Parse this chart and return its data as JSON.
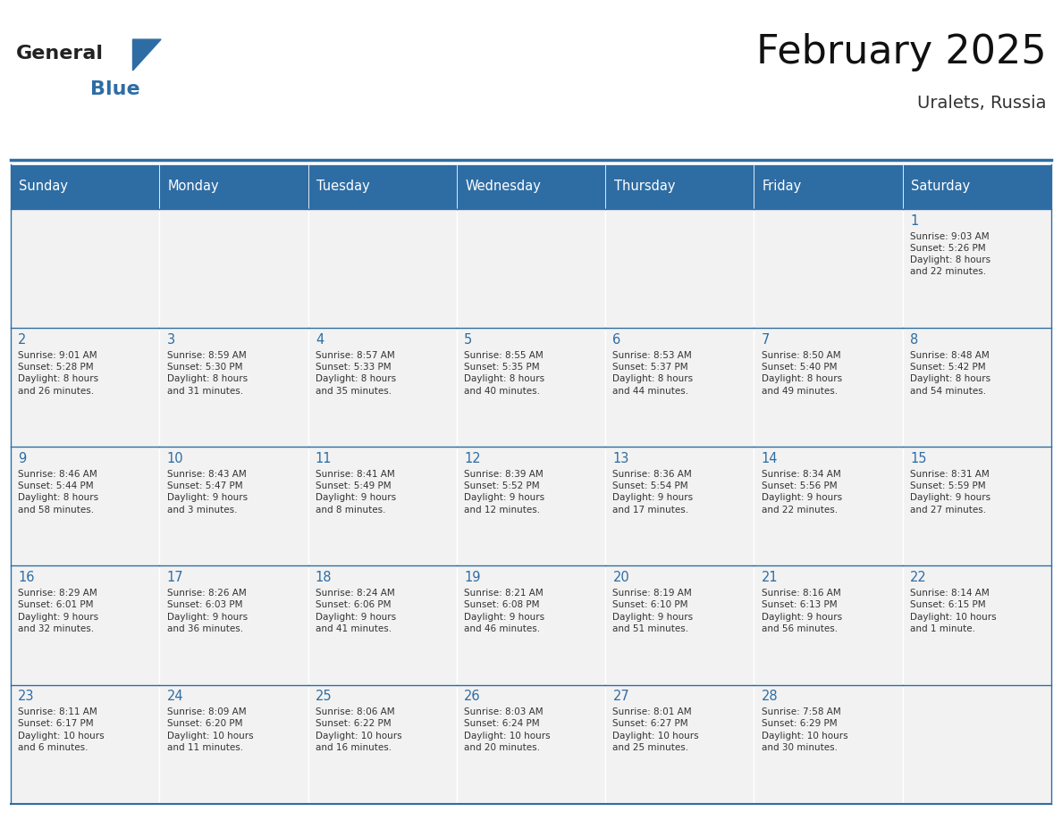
{
  "title": "February 2025",
  "subtitle": "Uralets, Russia",
  "days_of_week": [
    "Sunday",
    "Monday",
    "Tuesday",
    "Wednesday",
    "Thursday",
    "Friday",
    "Saturday"
  ],
  "header_bg": "#2E6DA4",
  "header_text": "#FFFFFF",
  "cell_bg_light": "#F2F2F2",
  "cell_bg_white": "#FFFFFF",
  "border_color": "#2E6DA4",
  "day_number_color": "#2E6DA4",
  "text_color": "#333333",
  "logo_general_color": "#222222",
  "logo_blue_color": "#2E6DA4",
  "weeks": [
    [
      {
        "day": null,
        "info": null
      },
      {
        "day": null,
        "info": null
      },
      {
        "day": null,
        "info": null
      },
      {
        "day": null,
        "info": null
      },
      {
        "day": null,
        "info": null
      },
      {
        "day": null,
        "info": null
      },
      {
        "day": 1,
        "info": "Sunrise: 9:03 AM\nSunset: 5:26 PM\nDaylight: 8 hours\nand 22 minutes."
      }
    ],
    [
      {
        "day": 2,
        "info": "Sunrise: 9:01 AM\nSunset: 5:28 PM\nDaylight: 8 hours\nand 26 minutes."
      },
      {
        "day": 3,
        "info": "Sunrise: 8:59 AM\nSunset: 5:30 PM\nDaylight: 8 hours\nand 31 minutes."
      },
      {
        "day": 4,
        "info": "Sunrise: 8:57 AM\nSunset: 5:33 PM\nDaylight: 8 hours\nand 35 minutes."
      },
      {
        "day": 5,
        "info": "Sunrise: 8:55 AM\nSunset: 5:35 PM\nDaylight: 8 hours\nand 40 minutes."
      },
      {
        "day": 6,
        "info": "Sunrise: 8:53 AM\nSunset: 5:37 PM\nDaylight: 8 hours\nand 44 minutes."
      },
      {
        "day": 7,
        "info": "Sunrise: 8:50 AM\nSunset: 5:40 PM\nDaylight: 8 hours\nand 49 minutes."
      },
      {
        "day": 8,
        "info": "Sunrise: 8:48 AM\nSunset: 5:42 PM\nDaylight: 8 hours\nand 54 minutes."
      }
    ],
    [
      {
        "day": 9,
        "info": "Sunrise: 8:46 AM\nSunset: 5:44 PM\nDaylight: 8 hours\nand 58 minutes."
      },
      {
        "day": 10,
        "info": "Sunrise: 8:43 AM\nSunset: 5:47 PM\nDaylight: 9 hours\nand 3 minutes."
      },
      {
        "day": 11,
        "info": "Sunrise: 8:41 AM\nSunset: 5:49 PM\nDaylight: 9 hours\nand 8 minutes."
      },
      {
        "day": 12,
        "info": "Sunrise: 8:39 AM\nSunset: 5:52 PM\nDaylight: 9 hours\nand 12 minutes."
      },
      {
        "day": 13,
        "info": "Sunrise: 8:36 AM\nSunset: 5:54 PM\nDaylight: 9 hours\nand 17 minutes."
      },
      {
        "day": 14,
        "info": "Sunrise: 8:34 AM\nSunset: 5:56 PM\nDaylight: 9 hours\nand 22 minutes."
      },
      {
        "day": 15,
        "info": "Sunrise: 8:31 AM\nSunset: 5:59 PM\nDaylight: 9 hours\nand 27 minutes."
      }
    ],
    [
      {
        "day": 16,
        "info": "Sunrise: 8:29 AM\nSunset: 6:01 PM\nDaylight: 9 hours\nand 32 minutes."
      },
      {
        "day": 17,
        "info": "Sunrise: 8:26 AM\nSunset: 6:03 PM\nDaylight: 9 hours\nand 36 minutes."
      },
      {
        "day": 18,
        "info": "Sunrise: 8:24 AM\nSunset: 6:06 PM\nDaylight: 9 hours\nand 41 minutes."
      },
      {
        "day": 19,
        "info": "Sunrise: 8:21 AM\nSunset: 6:08 PM\nDaylight: 9 hours\nand 46 minutes."
      },
      {
        "day": 20,
        "info": "Sunrise: 8:19 AM\nSunset: 6:10 PM\nDaylight: 9 hours\nand 51 minutes."
      },
      {
        "day": 21,
        "info": "Sunrise: 8:16 AM\nSunset: 6:13 PM\nDaylight: 9 hours\nand 56 minutes."
      },
      {
        "day": 22,
        "info": "Sunrise: 8:14 AM\nSunset: 6:15 PM\nDaylight: 10 hours\nand 1 minute."
      }
    ],
    [
      {
        "day": 23,
        "info": "Sunrise: 8:11 AM\nSunset: 6:17 PM\nDaylight: 10 hours\nand 6 minutes."
      },
      {
        "day": 24,
        "info": "Sunrise: 8:09 AM\nSunset: 6:20 PM\nDaylight: 10 hours\nand 11 minutes."
      },
      {
        "day": 25,
        "info": "Sunrise: 8:06 AM\nSunset: 6:22 PM\nDaylight: 10 hours\nand 16 minutes."
      },
      {
        "day": 26,
        "info": "Sunrise: 8:03 AM\nSunset: 6:24 PM\nDaylight: 10 hours\nand 20 minutes."
      },
      {
        "day": 27,
        "info": "Sunrise: 8:01 AM\nSunset: 6:27 PM\nDaylight: 10 hours\nand 25 minutes."
      },
      {
        "day": 28,
        "info": "Sunrise: 7:58 AM\nSunset: 6:29 PM\nDaylight: 10 hours\nand 30 minutes."
      },
      {
        "day": null,
        "info": null
      }
    ]
  ]
}
